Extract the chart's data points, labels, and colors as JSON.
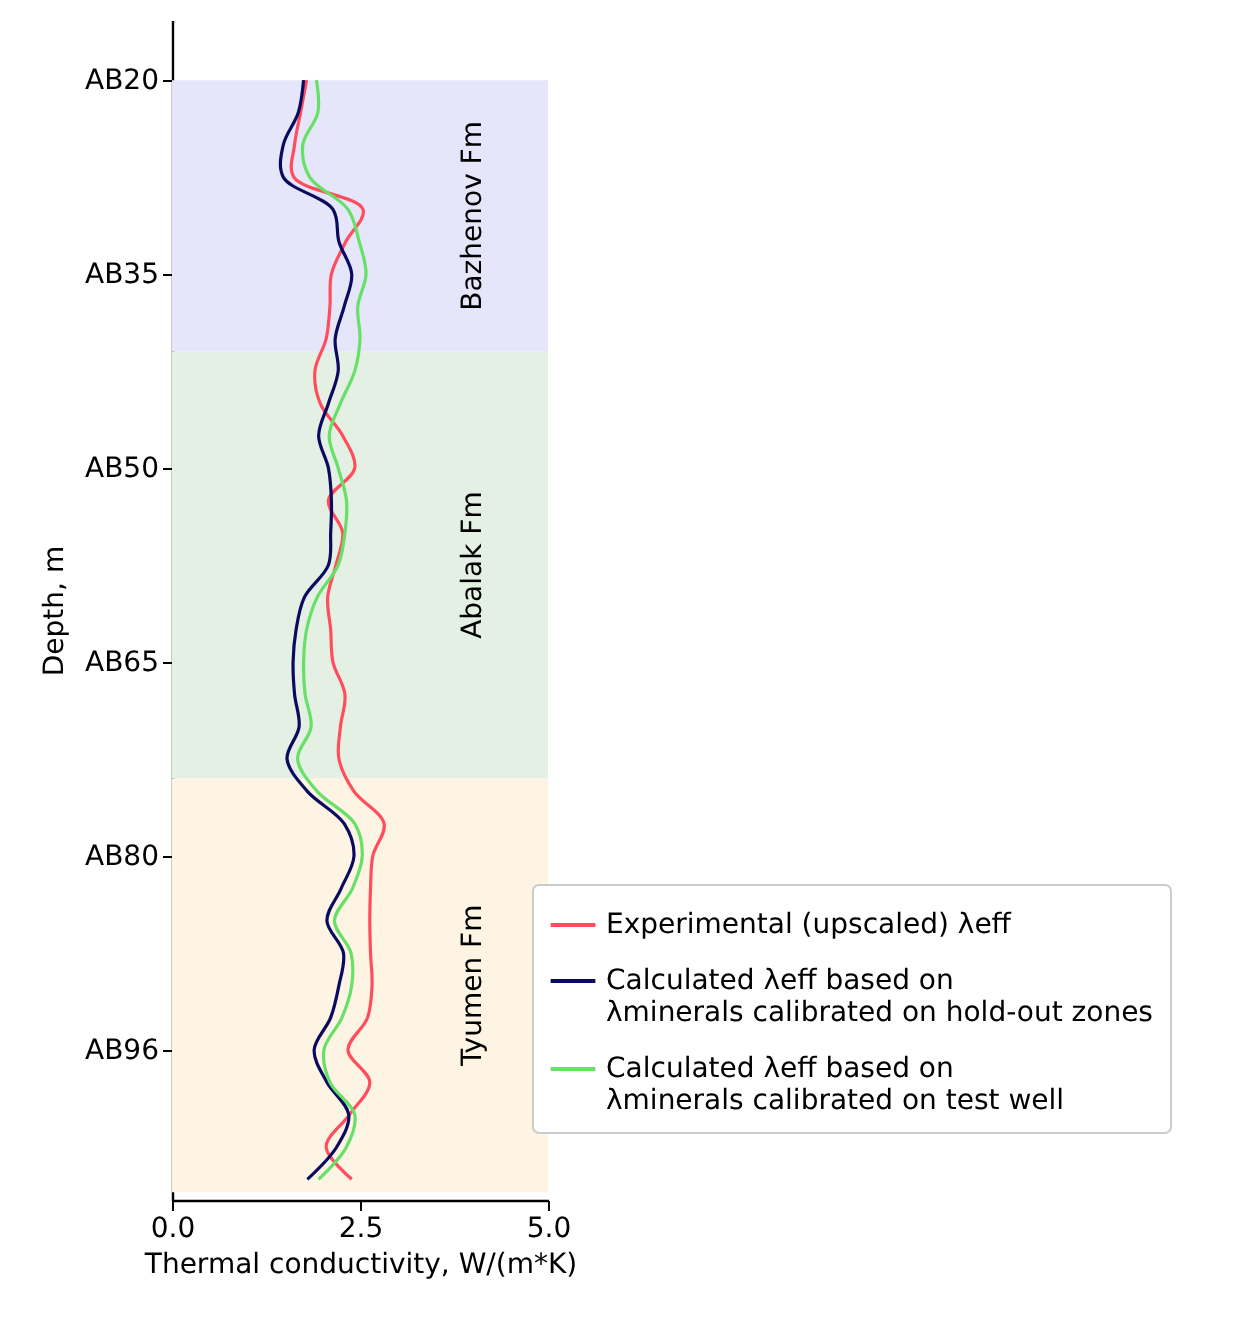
{
  "chart_data": {
    "type": "line",
    "orientation": "horizontal",
    "xlabel": "Thermal conductivity, W/(m*K)",
    "ylabel": "Depth, m",
    "xlim": [
      0,
      5
    ],
    "xticks": [
      {
        "value": 0,
        "label": "0.0"
      },
      {
        "value": 2.5,
        "label": "2.5"
      },
      {
        "value": 5,
        "label": "5.0"
      }
    ],
    "categories": [
      "AB20",
      null,
      null,
      null,
      null,
      null,
      "AB35",
      null,
      null,
      null,
      null,
      null,
      "AB50",
      null,
      null,
      null,
      null,
      null,
      "AB65",
      null,
      null,
      null,
      null,
      null,
      "AB80",
      null,
      null,
      null,
      null,
      null,
      "AB96",
      null,
      null,
      null,
      null
    ],
    "legend": "right",
    "annotations": [
      "Bazhenov Fm",
      "Abalak Fm",
      "Tyumen Fm"
    ],
    "series": [
      {
        "name": "Experimental (upscaled) λeff",
        "color": "#ff4d5e",
        "values": [
          1.79,
          1.71,
          1.63,
          1.62,
          2.54,
          2.31,
          2.12,
          2.1,
          2.05,
          1.9,
          1.97,
          2.27,
          2.43,
          2.08,
          2.27,
          2.18,
          2.07,
          2.11,
          2.14,
          2.3,
          2.24,
          2.22,
          2.42,
          2.82,
          2.67,
          2.64,
          2.63,
          2.64,
          2.66,
          2.6,
          2.34,
          2.63,
          2.36,
          2.05,
          2.39
        ]
      },
      {
        "name": "Calculated λeff based on\nλminerals calibrated on hold-out zones",
        "color": "#0a0a60",
        "values": [
          1.75,
          1.68,
          1.48,
          1.48,
          2.14,
          2.22,
          2.39,
          2.29,
          2.17,
          2.21,
          2.08,
          1.95,
          2.08,
          2.12,
          2.11,
          2.08,
          1.76,
          1.65,
          1.61,
          1.63,
          1.69,
          1.53,
          1.8,
          2.29,
          2.42,
          2.25,
          2.06,
          2.28,
          2.22,
          2.11,
          1.89,
          2.06,
          2.35,
          2.19,
          1.8
        ]
      },
      {
        "name": "Calculated λeff based on\nλminerals calibrated on test well",
        "color": "#66e066",
        "values": [
          1.92,
          1.94,
          1.74,
          1.83,
          2.34,
          2.49,
          2.58,
          2.47,
          2.5,
          2.43,
          2.24,
          2.09,
          2.21,
          2.32,
          2.3,
          2.21,
          1.93,
          1.79,
          1.75,
          1.77,
          1.85,
          1.67,
          1.93,
          2.43,
          2.53,
          2.4,
          2.16,
          2.38,
          2.39,
          2.26,
          2.02,
          2.1,
          2.43,
          2.32,
          1.95
        ]
      }
    ]
  }
}
